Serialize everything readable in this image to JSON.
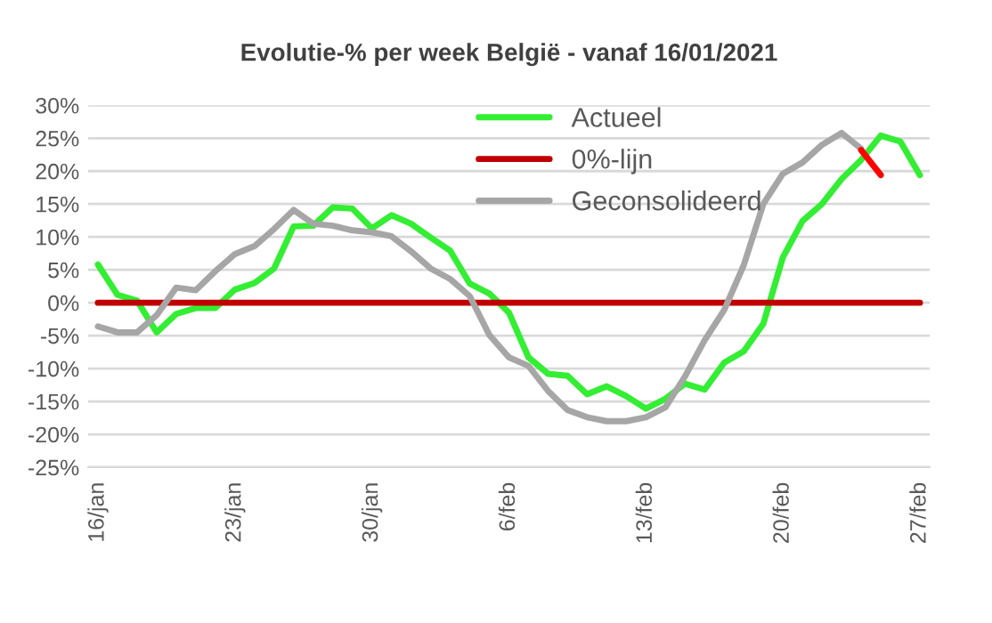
{
  "chart_data": {
    "type": "line",
    "title": "Evolutie-% per week België - vanaf 16/01/2021",
    "x": [
      "2021-01-16",
      "2021-01-17",
      "2021-01-18",
      "2021-01-19",
      "2021-01-20",
      "2021-01-21",
      "2021-01-22",
      "2021-01-23",
      "2021-01-24",
      "2021-01-25",
      "2021-01-26",
      "2021-01-27",
      "2021-01-28",
      "2021-01-29",
      "2021-01-30",
      "2021-01-31",
      "2021-02-01",
      "2021-02-02",
      "2021-02-03",
      "2021-02-04",
      "2021-02-05",
      "2021-02-06",
      "2021-02-07",
      "2021-02-08",
      "2021-02-09",
      "2021-02-10",
      "2021-02-11",
      "2021-02-12",
      "2021-02-13",
      "2021-02-14",
      "2021-02-15",
      "2021-02-16",
      "2021-02-17",
      "2021-02-18",
      "2021-02-19",
      "2021-02-20",
      "2021-02-21",
      "2021-02-22",
      "2021-02-23",
      "2021-02-24",
      "2021-02-25",
      "2021-02-26",
      "2021-02-27"
    ],
    "series": [
      {
        "name": "Actueel",
        "color": "#33ee33",
        "values": [
          5.8,
          1.2,
          0.3,
          -4.5,
          -1.7,
          -0.8,
          -0.8,
          2,
          3,
          5.2,
          11.6,
          11.7,
          14.5,
          14.3,
          11.3,
          13.3,
          12,
          9.9,
          7.9,
          2.9,
          1.4,
          -1.5,
          -8.3,
          -10.8,
          -11.1,
          -13.9,
          -12.7,
          -14.2,
          -16.1,
          -14.6,
          -12.3,
          -13.2,
          -9.1,
          -7.4,
          -3.2,
          6.9,
          12.4,
          15,
          18.8,
          21.7,
          25.4,
          24.5,
          19.4
        ]
      },
      {
        "name": "0%-lijn",
        "color": "#c00000",
        "values": [
          0,
          0,
          0,
          0,
          0,
          0,
          0,
          0,
          0,
          0,
          0,
          0,
          0,
          0,
          0,
          0,
          0,
          0,
          0,
          0,
          0,
          0,
          0,
          0,
          0,
          0,
          0,
          0,
          0,
          0,
          0,
          0,
          0,
          0,
          0,
          0,
          0,
          0,
          0,
          0,
          0,
          0,
          0
        ]
      },
      {
        "name": "Geconsolideerd",
        "color": "#a6a6a6",
        "values": [
          -3.6,
          -4.5,
          -4.5,
          -1.9,
          2.3,
          1.9,
          4.8,
          7.4,
          8.6,
          11.2,
          14.1,
          12,
          11.7,
          11,
          10.7,
          10.1,
          7.8,
          5.2,
          3.6,
          1,
          -4.9,
          -8.3,
          -9.6,
          -13.4,
          -16.3,
          -17.4,
          -18,
          -18,
          -17.4,
          -15.9,
          -11.2,
          -5.7,
          -1.1,
          5.7,
          15,
          19.6,
          21.3,
          24,
          25.8,
          23.4,
          null,
          null,
          null
        ]
      },
      {
        "color": "#ff0000",
        "values": [
          null,
          null,
          null,
          null,
          null,
          null,
          null,
          null,
          null,
          null,
          null,
          null,
          null,
          null,
          null,
          null,
          null,
          null,
          null,
          null,
          null,
          null,
          null,
          null,
          null,
          null,
          null,
          null,
          null,
          null,
          null,
          null,
          null,
          null,
          null,
          null,
          null,
          null,
          null,
          23.2,
          19.4,
          null,
          null
        ]
      }
    ],
    "xlim": [
      "2021-01-15T12:00",
      "2021-02-27T12:00"
    ],
    "xticks": [
      {
        "value": "2021-01-16",
        "label": "16/jan"
      },
      {
        "value": "2021-01-23",
        "label": "23/jan"
      },
      {
        "value": "2021-01-30",
        "label": "30/jan"
      },
      {
        "value": "2021-02-06",
        "label": "6/feb"
      },
      {
        "value": "2021-02-13",
        "label": "13/feb"
      },
      {
        "value": "2021-02-20",
        "label": "20/feb"
      },
      {
        "value": "2021-02-27",
        "label": "27/feb"
      }
    ],
    "ylim": [
      -25,
      30
    ],
    "yticks": [
      {
        "value": -25,
        "label": "-25%"
      },
      {
        "value": -20,
        "label": "-20%"
      },
      {
        "value": -15,
        "label": "-15%"
      },
      {
        "value": -10,
        "label": "-10%"
      },
      {
        "value": -5,
        "label": "-5%"
      },
      {
        "value": 0,
        "label": "0%"
      },
      {
        "value": 5,
        "label": "5%"
      },
      {
        "value": 10,
        "label": "10%"
      },
      {
        "value": 15,
        "label": "15%"
      },
      {
        "value": 20,
        "label": "20%"
      },
      {
        "value": 25,
        "label": "25%"
      },
      {
        "value": 30,
        "label": "30%"
      }
    ],
    "grid": "y",
    "legend": "top right",
    "marker": "none",
    "line_style": "solid"
  }
}
